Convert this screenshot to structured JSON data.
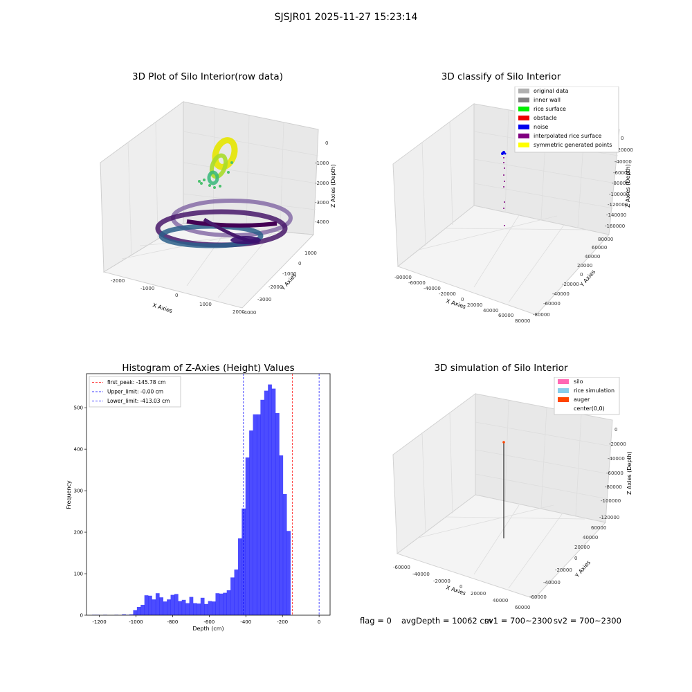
{
  "figure": {
    "suptitle": "SJSJR01 2025-11-27 15:23:14"
  },
  "panel_raw": {
    "title": "3D Plot of Silo Interior(row data)",
    "x_label": "X Axies",
    "y_label": "Y Axies",
    "z_label": "Z Axies (Depth)",
    "x_ticks": [
      "-2000",
      "-1000",
      "0",
      "1000",
      "2000"
    ],
    "y_ticks": [
      "-4000",
      "-3000",
      "-2000",
      "-1000",
      "0",
      "1000"
    ],
    "z_ticks": [
      "0",
      "-1000",
      "-2000",
      "-3000",
      "-4000"
    ]
  },
  "panel_classify": {
    "title": "3D classify of Silo Interior",
    "x_label": "X Axies",
    "y_label": "Y Axies",
    "z_label": "Z Axies (Depth)",
    "x_ticks": [
      "-80000",
      "-60000",
      "-40000",
      "-20000",
      "0",
      "20000",
      "40000",
      "60000",
      "80000"
    ],
    "y_ticks": [
      "-80000",
      "-60000",
      "-40000",
      "-20000",
      "0",
      "20000",
      "40000",
      "60000",
      "80000"
    ],
    "z_ticks": [
      "0",
      "-20000",
      "-40000",
      "-60000",
      "-80000",
      "-100000",
      "-120000",
      "-140000",
      "-160000"
    ],
    "legend": [
      {
        "label": "original data",
        "color": "#b0b0b0"
      },
      {
        "label": "inner wall",
        "color": "#808080"
      },
      {
        "label": "rice surface",
        "color": "#00ee00"
      },
      {
        "label": "obstacle",
        "color": "#ee0000"
      },
      {
        "label": "noise",
        "color": "#0000ee"
      },
      {
        "label": "interpolated rice surface",
        "color": "#800080"
      },
      {
        "label": "symmetric generated points",
        "color": "#ffff00"
      }
    ]
  },
  "panel_sim": {
    "title": "3D simulation of Silo Interior",
    "x_label": "X Axies",
    "y_label": "Y Axies",
    "z_label": "Z Axies (Depth)",
    "x_ticks": [
      "-60000",
      "-40000",
      "-20000",
      "0",
      "20000",
      "40000",
      "60000"
    ],
    "y_ticks": [
      "-60000",
      "-40000",
      "-20000",
      "0",
      "20000",
      "40000",
      "60000"
    ],
    "z_ticks": [
      "0",
      "-20000",
      "-40000",
      "-60000",
      "-80000",
      "-100000",
      "-120000"
    ],
    "legend": [
      {
        "label": "silo",
        "color": "#ff69b4"
      },
      {
        "label": "rice simulation",
        "color": "#87ceeb"
      },
      {
        "label": "auger",
        "color": "#ff4500"
      },
      {
        "label": "center(0,0)",
        "color": ""
      }
    ]
  },
  "footer": {
    "flag": "flag = 0",
    "avg_depth": "avgDepth = 10062 cm",
    "sv1": "sv1 = 700~2300",
    "sv2": "sv2 = 700~2300"
  },
  "chart_data": {
    "type": "bar",
    "title": "Histogram of Z-Axies (Height) Values",
    "xlabel": "Depth (cm)",
    "ylabel": "Frequency",
    "xlim": [
      -1270,
      60
    ],
    "ylim": [
      0,
      582
    ],
    "xticks": [
      -1200,
      -1000,
      -800,
      -600,
      -400,
      -200,
      0
    ],
    "yticks": [
      0,
      100,
      200,
      300,
      400,
      500
    ],
    "bar_color": "#0000ff",
    "bin_start": -1240,
    "bin_width": 20.44,
    "counts": [
      1,
      1,
      0,
      1,
      0,
      0,
      1,
      0,
      2,
      1,
      2,
      12,
      20,
      25,
      48,
      47,
      38,
      53,
      43,
      33,
      38,
      49,
      51,
      34,
      37,
      29,
      44,
      29,
      28,
      42,
      27,
      34,
      33,
      53,
      52,
      54,
      60,
      91,
      110,
      185,
      257,
      380,
      445,
      484,
      484,
      519,
      541,
      556,
      546,
      487,
      385,
      292,
      203
    ],
    "lines": [
      {
        "label": "first_peak: -145.78 cm",
        "x": -145.78,
        "color": "#ff0000"
      },
      {
        "label": "Upper_limit: -0.00 cm",
        "x": 0.0,
        "color": "#0000ff"
      },
      {
        "label": "Lower_limit: -413.03 cm",
        "x": -413.03,
        "color": "#0000ff"
      }
    ],
    "legend_position": "upper-left"
  }
}
